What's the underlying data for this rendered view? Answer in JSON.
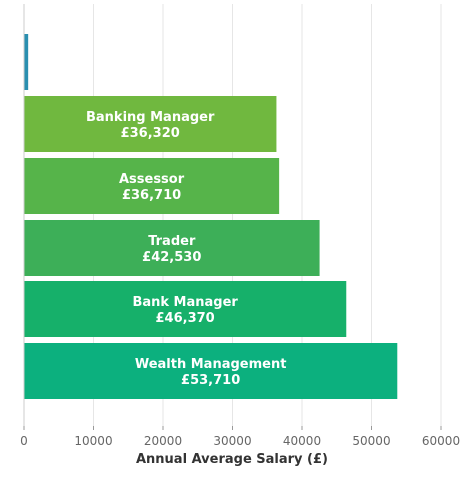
{
  "chart_data": {
    "type": "bar",
    "orientation": "horizontal",
    "title": "",
    "xlabel": "Annual Average Salary (£)",
    "ylabel": "",
    "xlim": [
      0,
      60000
    ],
    "xticks": [
      0,
      10000,
      20000,
      30000,
      40000,
      50000,
      60000
    ],
    "grid": "vertical",
    "categories": [
      "",
      "Banking Manager",
      "Assessor",
      "Trader",
      "Bank Manager",
      "Wealth Management"
    ],
    "values": [
      600,
      36320,
      36710,
      42530,
      46370,
      53710
    ],
    "value_labels": [
      "",
      "£36,320",
      "£36,710",
      "£42,530",
      "£46,370",
      "£53,710"
    ],
    "colors": [
      "#2a8fb0",
      "#70b83f",
      "#56b44a",
      "#3daf58",
      "#16b06a",
      "#0cb07e"
    ]
  }
}
